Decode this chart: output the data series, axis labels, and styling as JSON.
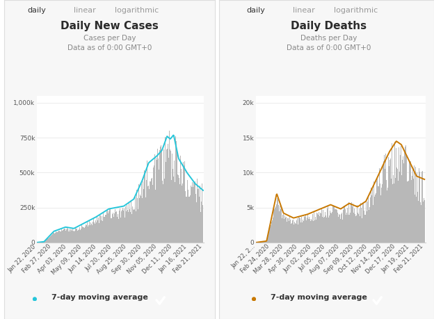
{
  "left": {
    "title": "Daily New Cases",
    "subtitle": "Cases per Day\nData as of 0:00 GMT+0",
    "tab_labels": [
      "daily",
      "linear",
      "logarithmic"
    ],
    "yticks": [
      0,
      250000,
      500000,
      750000,
      1000000
    ],
    "ytick_labels": [
      "0",
      "250k",
      "500k",
      "750k",
      "1,000k"
    ],
    "ylim": [
      0,
      1050000
    ],
    "xtick_labels": [
      "Jan 22, 2020",
      "Feb 27, 2020",
      "Apr 03, 2020",
      "May 09, 2020",
      "Jun 14, 2020",
      "Jul 20, 2020",
      "Aug 25, 2020",
      "Sep 30, 2020",
      "Nov 05, 2020",
      "Dec 11, 2020",
      "Jan 16, 2021",
      "Feb 21, 2021"
    ],
    "bar_color": "#b8b8b8",
    "line_color": "#26c6da",
    "legend_label": "7-day moving average",
    "checkbox_color": "#29b6d4"
  },
  "right": {
    "title": "Daily Deaths",
    "subtitle": "Deaths per Day\nData as of 0:00 GMT+0",
    "tab_labels": [
      "daily",
      "linear",
      "logarithmic"
    ],
    "yticks": [
      0,
      5000,
      10000,
      15000,
      20000
    ],
    "ytick_labels": [
      "0",
      "5k",
      "10k",
      "15k",
      "20k"
    ],
    "ylim": [
      0,
      21000
    ],
    "xtick_labels": [
      "Jan 22, 2...",
      "Feb 24, 2020",
      "Mar 28, 2020",
      "Apr 30, 2020",
      "Jun 02, 2020",
      "Jul 05, 2020",
      "Aug 07, 2020",
      "Sep 09, 2020",
      "Oct 12, 2020",
      "Nov 14, 2020",
      "Dec 17, 2020",
      "Jan 19, 2021",
      "Feb 21, 2021"
    ],
    "bar_color": "#b8b8b8",
    "line_color": "#c87800",
    "legend_label": "7-day moving average",
    "checkbox_color": "#29b6d4"
  },
  "bg_color": "#ffffff",
  "tab_underline_color": "#26c6da",
  "border_color": "#dddddd",
  "title_fontsize": 11,
  "subtitle_fontsize": 7.5,
  "tick_fontsize": 6.5,
  "tab_fontsize": 8,
  "legend_fontsize": 8,
  "active_tab_color": "#333333",
  "inactive_tab_color": "#999999",
  "grid_color": "#e8e8e8",
  "axis_color": "#cccccc"
}
